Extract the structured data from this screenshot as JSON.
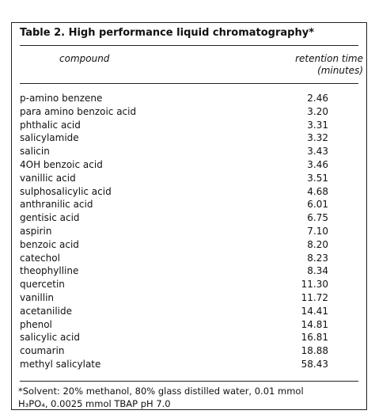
{
  "table": {
    "title": "Table 2.  High performance liquid chromatography*",
    "header": {
      "compound": "compound",
      "retention": [
        "retention time",
        "(minutes)"
      ]
    },
    "rows": [
      [
        "p-amino benzene",
        "2.46"
      ],
      [
        "para amino benzoic acid",
        "3.20"
      ],
      [
        "phthalic acid",
        "3.31"
      ],
      [
        "salicylamide",
        "3.32"
      ],
      [
        "salicin",
        "3.43"
      ],
      [
        "4OH benzoic acid",
        "3.46"
      ],
      [
        "vanillic acid",
        "3.51"
      ],
      [
        "sulphosalicylic acid",
        "4.68"
      ],
      [
        "anthranilic acid",
        "6.01"
      ],
      [
        "gentisic acid",
        "6.75"
      ],
      [
        "aspirin",
        "7.10"
      ],
      [
        "benzoic acid",
        "8.20"
      ],
      [
        "catechol",
        "8.23"
      ],
      [
        "theophylline",
        "8.34"
      ],
      [
        "quercetin",
        "11.30"
      ],
      [
        "vanillin",
        "11.72"
      ],
      [
        "acetanilide",
        "14.41"
      ],
      [
        "phenol",
        "14.81"
      ],
      [
        "salicylic acid",
        "16.81"
      ],
      [
        "coumarin",
        "18.88"
      ],
      [
        "methyl salicylate",
        "58.43"
      ]
    ],
    "footnote": [
      "*Solvent: 20% methanol, 80% glass distilled water, 0.01 mmol",
      "H₃PO₄, 0.0025 mmol TBAP pH 7.0"
    ]
  }
}
